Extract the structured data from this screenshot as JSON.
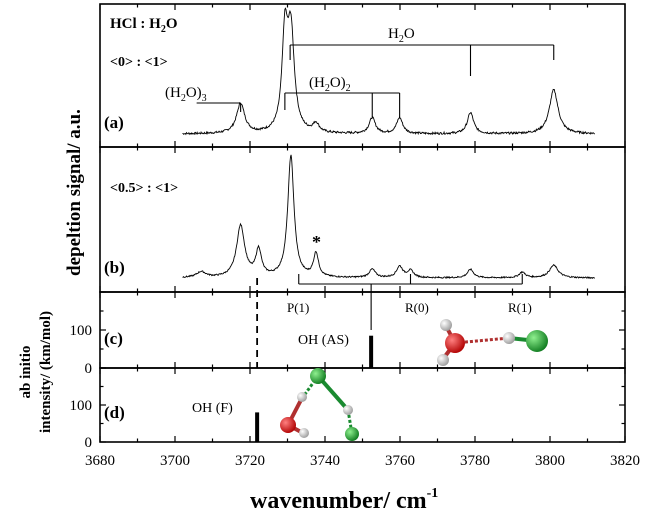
{
  "chart_data": {
    "type": "line",
    "xlabel_main": "wavenumber/ cm",
    "xlabel_sup": "-1",
    "xlim": [
      3680,
      3820
    ],
    "x_ticks": [
      "3680",
      "3700",
      "3720",
      "3740",
      "3760",
      "3780",
      "3800",
      "3820"
    ],
    "ylabel_top": "depeltion signal/ a.u.",
    "ylabel_bottom_1": "ab initio",
    "ylabel_bottom_2": "intensity/ (km/mol)",
    "y_ticks_calc": [
      "0",
      "100"
    ],
    "ylim_calc": [
      0,
      200
    ],
    "panels": [
      {
        "label": "(a)",
        "header": "HCl : H",
        "header_sub": "2",
        "header_tail": "O",
        "ratio": "<0> : <1>",
        "peaks": [
          {
            "x": 3717.5,
            "h": 0.17,
            "w": 1.3
          },
          {
            "x": 3729.3,
            "h": 0.52,
            "w": 0.9
          },
          {
            "x": 3730.9,
            "h": 0.56,
            "w": 1.1
          },
          {
            "x": 3737.6,
            "h": 0.05,
            "w": 1.0
          },
          {
            "x": 3752.6,
            "h": 0.09,
            "w": 1.0
          },
          {
            "x": 3759.9,
            "h": 0.09,
            "w": 1.0
          },
          {
            "x": 3778.8,
            "h": 0.12,
            "w": 1.0
          },
          {
            "x": 3801.0,
            "h": 0.25,
            "w": 1.4
          }
        ]
      },
      {
        "label": "(b)",
        "ratio": "<0.5> : <1>",
        "star": "*",
        "peaks": [
          {
            "x": 3707.0,
            "h": 0.04,
            "w": 1.5
          },
          {
            "x": 3717.5,
            "h": 0.37,
            "w": 1.3
          },
          {
            "x": 3722.3,
            "h": 0.19,
            "w": 0.9
          },
          {
            "x": 3730.9,
            "h": 0.87,
            "w": 1.0
          },
          {
            "x": 3737.6,
            "h": 0.17,
            "w": 0.8
          },
          {
            "x": 3752.6,
            "h": 0.06,
            "w": 1.0
          },
          {
            "x": 3759.9,
            "h": 0.08,
            "w": 1.0
          },
          {
            "x": 3762.8,
            "h": 0.05,
            "w": 1.0
          },
          {
            "x": 3778.8,
            "h": 0.06,
            "w": 1.0
          },
          {
            "x": 3792.6,
            "h": 0.04,
            "w": 1.0
          },
          {
            "x": 3801.0,
            "h": 0.09,
            "w": 1.4
          }
        ]
      },
      {
        "label": "(c)",
        "stick_x": 3752.3,
        "stick_value": 85,
        "annotation": "OH (AS)"
      },
      {
        "label": "(d)",
        "stick_x": 3721.9,
        "stick_value": 80,
        "annotation": "OH (F)"
      }
    ],
    "assignments": {
      "h2o": {
        "label": "H",
        "sub": "2",
        "tail": "O",
        "lines": [
          3730.7,
          3778.8,
          3801.0
        ]
      },
      "h2o2": {
        "label": "(H",
        "sub": "2",
        "tail": "O)",
        "tail_sub": "2",
        "lines": [
          3729.3,
          3752.6,
          3759.9
        ]
      },
      "h2o3": {
        "label": "(H",
        "sub": "2",
        "tail": "O)",
        "tail_sub": "3",
        "line": 3717.5
      },
      "rot": [
        {
          "label": "P(1)",
          "x": 3733
        },
        {
          "label": "R(0)",
          "x": 3762.8
        },
        {
          "label": "R(1)",
          "x": 3792.6
        }
      ],
      "rot_origin": 3752.3
    },
    "molecule_colors": {
      "O": "#d42020",
      "H": "#cfcfcf",
      "Cl": "#1aa030",
      "bond": "#c04030"
    }
  }
}
